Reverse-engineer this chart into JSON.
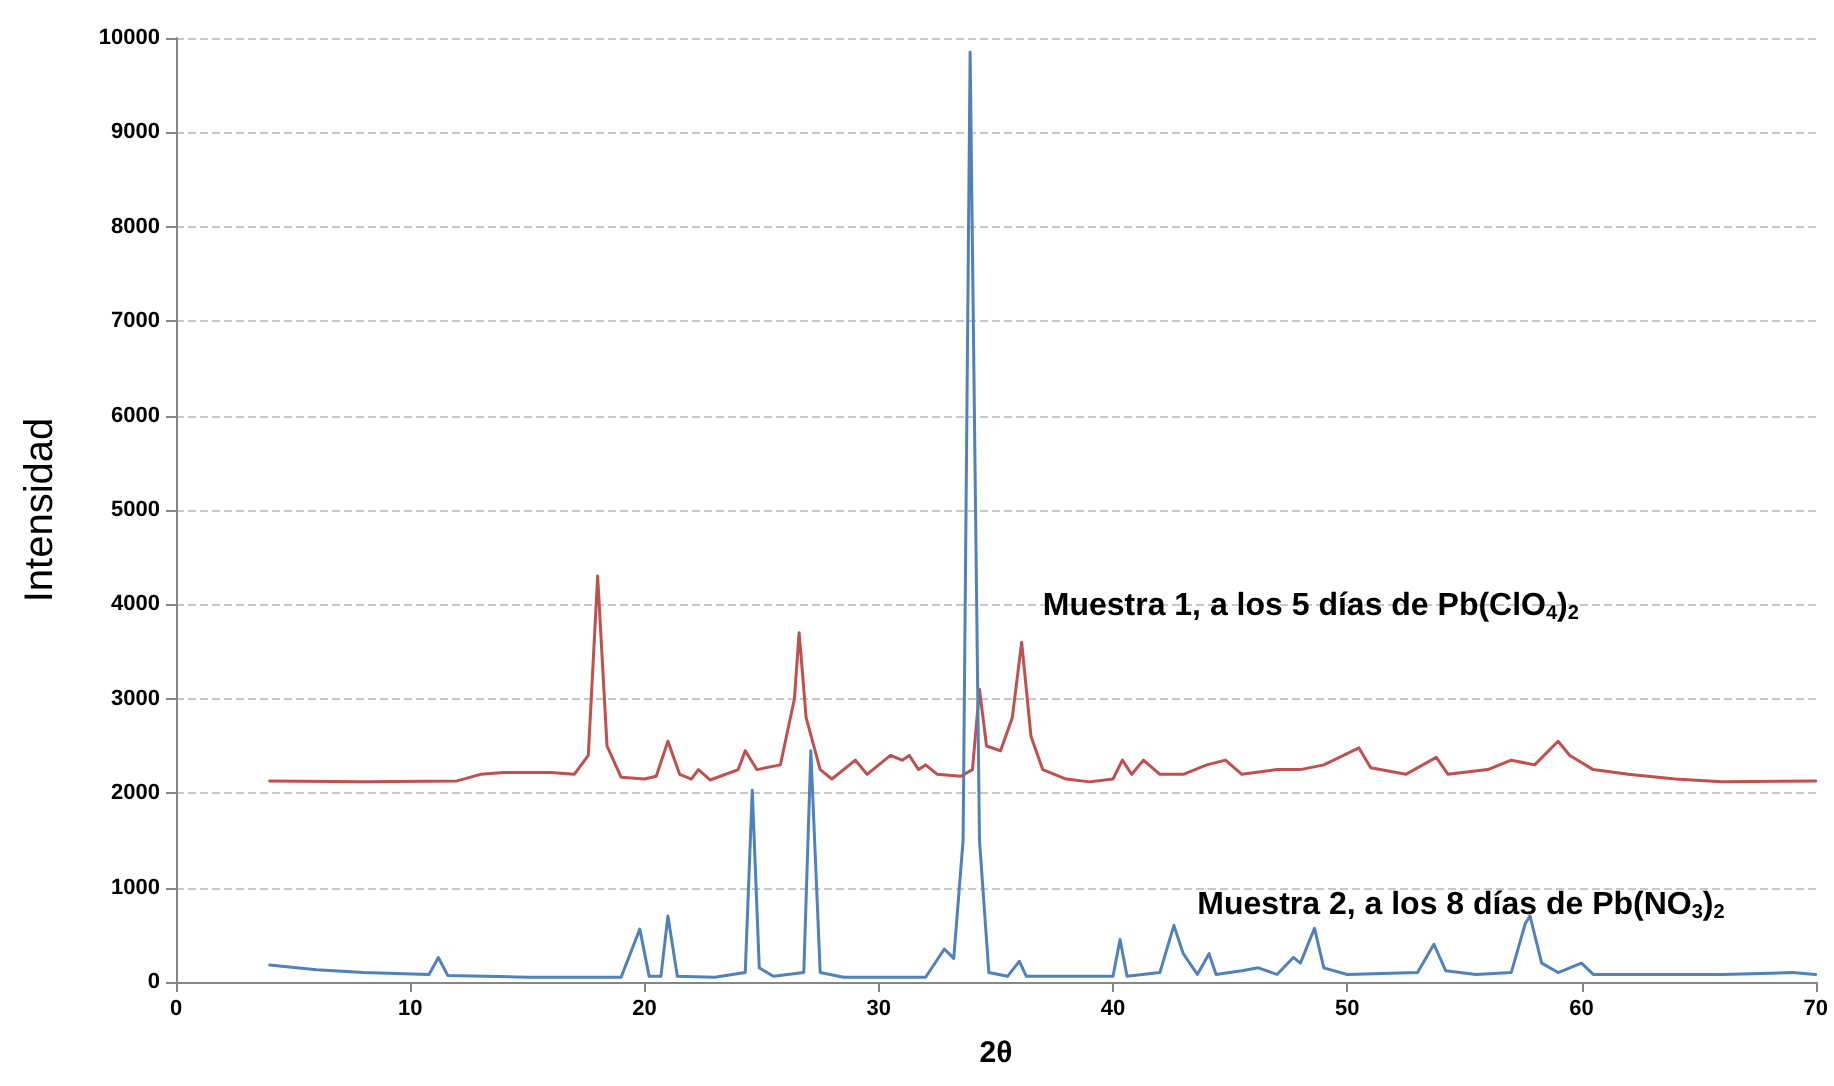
{
  "chart_data": {
    "type": "line",
    "xlabel": "2θ",
    "ylabel": "Intensidad",
    "xlim": [
      0,
      70
    ],
    "xticks": [
      0,
      10,
      20,
      30,
      40,
      50,
      60,
      70
    ],
    "ylim": [
      0,
      10000
    ],
    "yticks": [
      0,
      1000,
      2000,
      3000,
      4000,
      5000,
      6000,
      7000,
      8000,
      9000,
      10000
    ],
    "grid": "y",
    "legend": false,
    "marker": "none",
    "line_style": "solid",
    "series": [
      {
        "name": "Muestra 1, a los 5 días de Pb(ClO$_{4}$)$_{2}$",
        "color": "#c0504d",
        "x": [
          4,
          8,
          12,
          13,
          14,
          16,
          17,
          17.6,
          18,
          18.4,
          19,
          20,
          20.5,
          21,
          21.5,
          22,
          22.3,
          22.8,
          24,
          24.3,
          24.8,
          25.8,
          26.4,
          26.6,
          26.9,
          27.5,
          28,
          29,
          29.5,
          30,
          30.5,
          31,
          31.3,
          31.7,
          32,
          32.5,
          33.5,
          34,
          34.3,
          34.6,
          35.2,
          35.7,
          36.1,
          36.5,
          37,
          38,
          39,
          40,
          40.4,
          40.8,
          41.3,
          42,
          43,
          44,
          44.8,
          45.5,
          47,
          48,
          49,
          50.5,
          51,
          52.5,
          53.8,
          54.3,
          56,
          57,
          58,
          59,
          59.5,
          60.5,
          62,
          64,
          66,
          70
        ],
        "values": [
          2130,
          2120,
          2130,
          2200,
          2220,
          2220,
          2200,
          2400,
          4300,
          2500,
          2170,
          2150,
          2180,
          2550,
          2200,
          2150,
          2250,
          2140,
          2250,
          2450,
          2250,
          2300,
          3000,
          3700,
          2800,
          2250,
          2150,
          2350,
          2200,
          2300,
          2400,
          2350,
          2400,
          2250,
          2300,
          2200,
          2180,
          2250,
          3100,
          2500,
          2450,
          2800,
          3600,
          2600,
          2250,
          2150,
          2120,
          2150,
          2350,
          2200,
          2350,
          2200,
          2200,
          2300,
          2350,
          2200,
          2250,
          2250,
          2300,
          2480,
          2270,
          2200,
          2380,
          2200,
          2250,
          2350,
          2300,
          2550,
          2400,
          2250,
          2200,
          2150,
          2120,
          2130
        ]
      },
      {
        "name": "Muestra 2, a los 8 días de Pb(NO$_{3}$)$_{2}$",
        "color": "#4f81bd",
        "x": [
          4,
          6,
          8,
          10.8,
          11.2,
          11.6,
          15,
          19,
          19.8,
          20.2,
          20.7,
          21,
          21.4,
          23,
          24.3,
          24.6,
          24.9,
          25.5,
          26.8,
          27.1,
          27.5,
          28.5,
          32,
          32.8,
          33.2,
          33.6,
          33.9,
          34.3,
          34.7,
          35.5,
          36,
          36.3,
          40,
          40.3,
          40.6,
          42,
          42.6,
          43,
          43.6,
          44.1,
          44.4,
          45.5,
          46.2,
          47,
          47.7,
          48,
          48.6,
          49,
          50,
          53,
          53.7,
          54.2,
          55.5,
          57,
          57.6,
          57.8,
          58.3,
          59,
          60,
          60.5,
          62,
          66,
          69,
          70
        ],
        "values": [
          180,
          130,
          100,
          80,
          260,
          70,
          50,
          50,
          560,
          60,
          60,
          700,
          60,
          50,
          100,
          2030,
          150,
          60,
          100,
          2450,
          100,
          50,
          50,
          350,
          250,
          1500,
          9850,
          1500,
          100,
          60,
          220,
          60,
          60,
          450,
          60,
          100,
          600,
          300,
          80,
          300,
          80,
          120,
          150,
          80,
          260,
          200,
          570,
          150,
          80,
          100,
          400,
          120,
          80,
          100,
          620,
          700,
          200,
          100,
          200,
          80,
          80,
          80,
          100,
          80
        ]
      }
    ]
  }
}
